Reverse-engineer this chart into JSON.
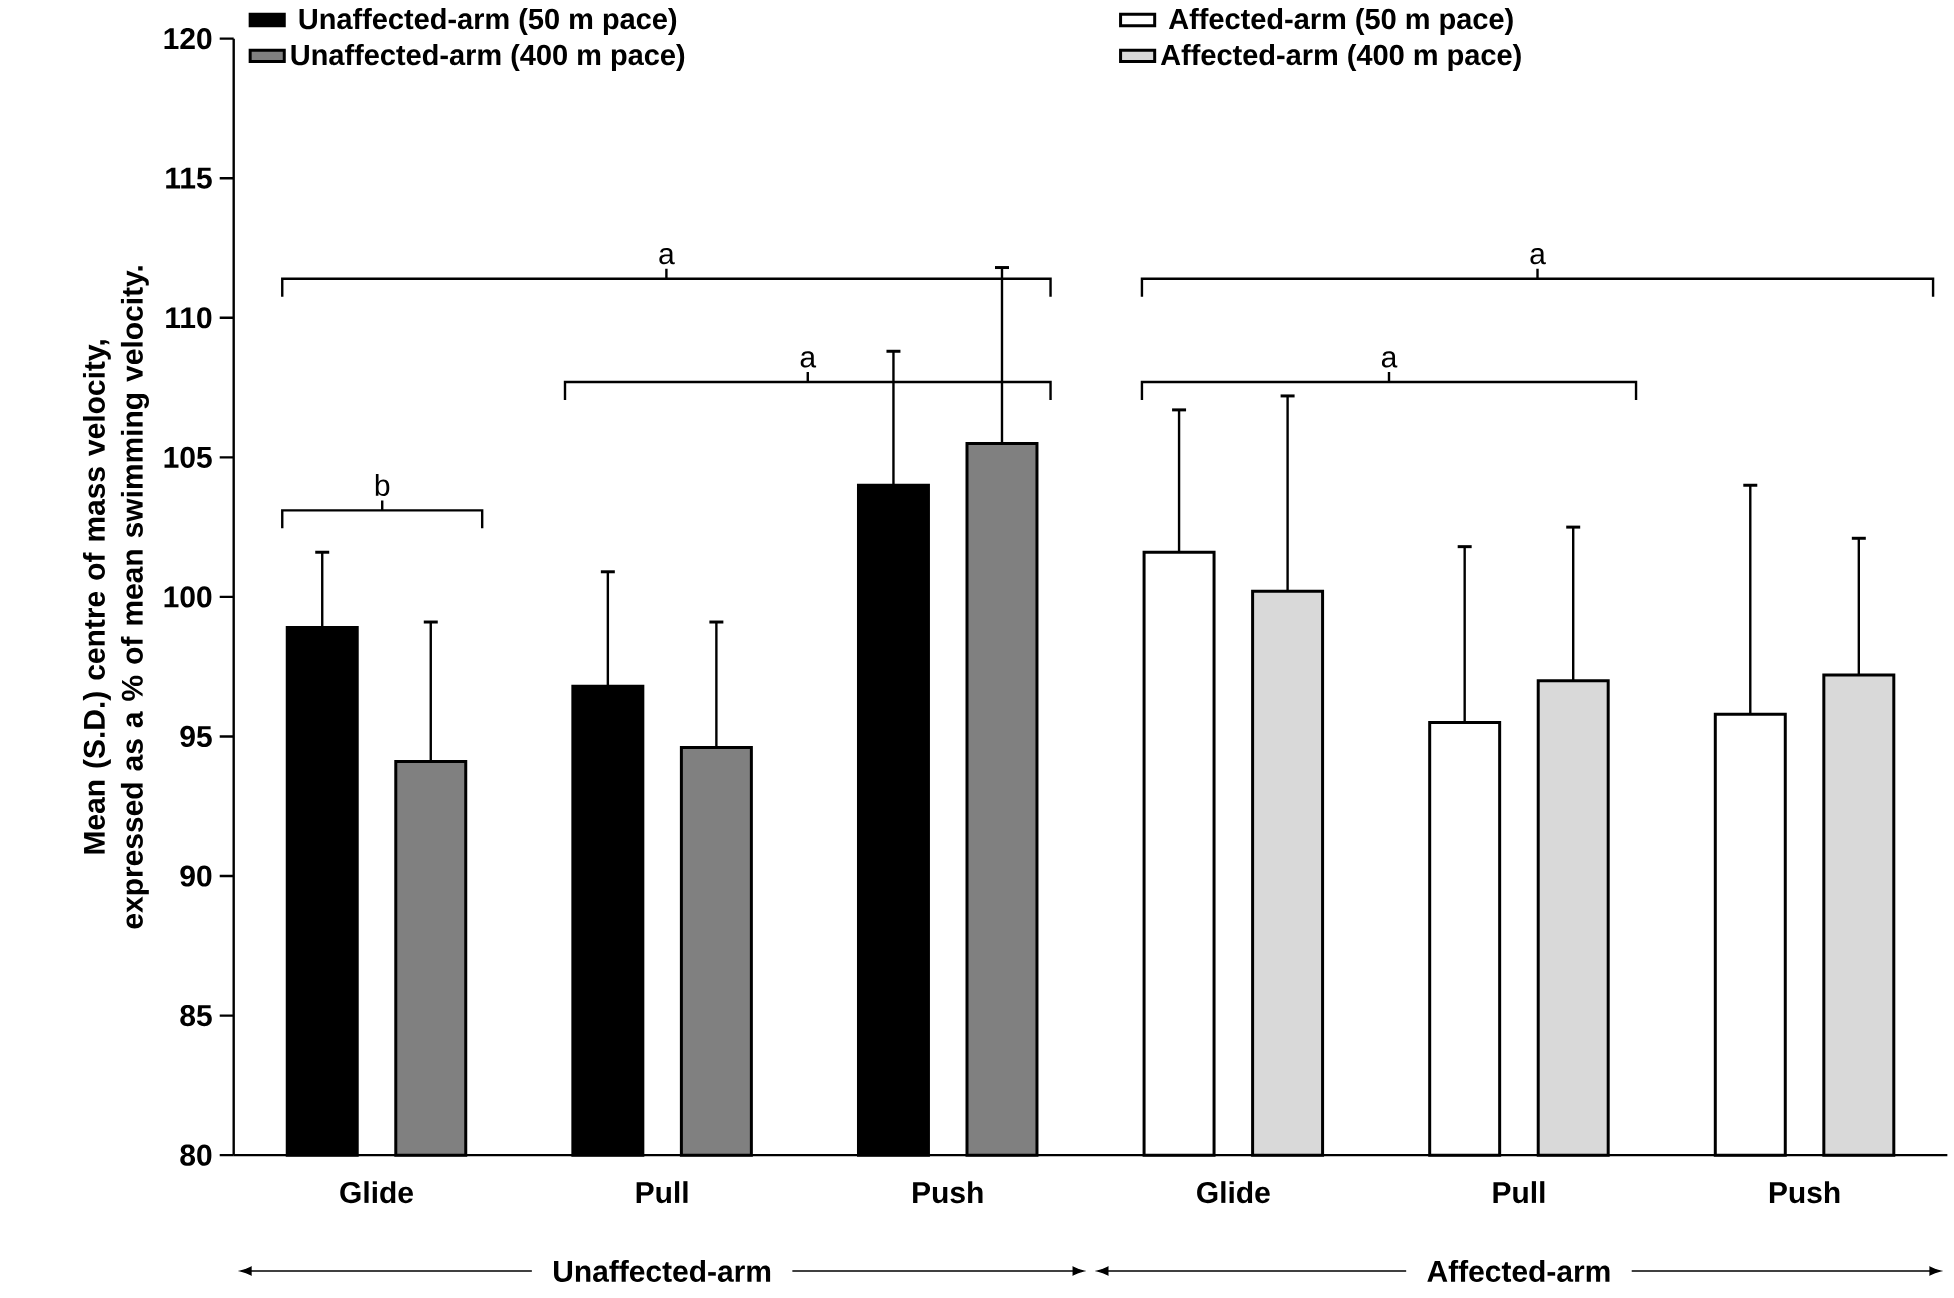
{
  "chart_data": {
    "type": "bar",
    "ylabel": "Mean (S.D.) centre of mass velocity, expressed as a % of mean swimming velocity.",
    "categories": [
      "Glide",
      "Pull",
      "Push",
      "Glide",
      "Pull",
      "Push"
    ],
    "series": [
      {
        "name": "Unaffected-arm (50 m pace)",
        "color": "#000000",
        "values": [
          98.9,
          96.8,
          104.0,
          null,
          null,
          null
        ],
        "errors": [
          [
            98.9,
            101.6
          ],
          [
            96.8,
            100.9
          ],
          [
            104.0,
            108.8
          ],
          null,
          null,
          null
        ]
      },
      {
        "name": "Unaffected-arm (400 m pace)",
        "color": "#808080",
        "values": [
          94.1,
          94.6,
          105.5,
          null,
          null,
          null
        ],
        "errors": [
          [
            94.1,
            99.1
          ],
          [
            94.6,
            99.1
          ],
          [
            105.5,
            111.8
          ],
          null,
          null,
          null
        ]
      },
      {
        "name": "Affected-arm (50 m pace)",
        "color": "#ffffff",
        "values": [
          null,
          null,
          null,
          101.6,
          95.5,
          95.8
        ],
        "errors": [
          null,
          null,
          null,
          [
            101.6,
            106.7
          ],
          [
            95.5,
            101.8
          ],
          [
            95.8,
            104.0
          ]
        ]
      },
      {
        "name": "Affected-arm (400 m pace)",
        "color": "#d9d9d9",
        "values": [
          null,
          null,
          null,
          100.2,
          97.0,
          97.2
        ],
        "errors": [
          null,
          null,
          null,
          [
            100.2,
            107.2
          ],
          [
            97.0,
            102.5
          ],
          [
            97.2,
            102.1
          ]
        ]
      }
    ],
    "ylim": [
      80,
      120
    ],
    "yticks": [
      80,
      85,
      90,
      95,
      100,
      105,
      110,
      115,
      120
    ],
    "legend": "top",
    "annotations": [
      "a",
      "a",
      "b",
      "a",
      "a",
      "Unaffected-arm",
      "Affected-arm"
    ]
  }
}
